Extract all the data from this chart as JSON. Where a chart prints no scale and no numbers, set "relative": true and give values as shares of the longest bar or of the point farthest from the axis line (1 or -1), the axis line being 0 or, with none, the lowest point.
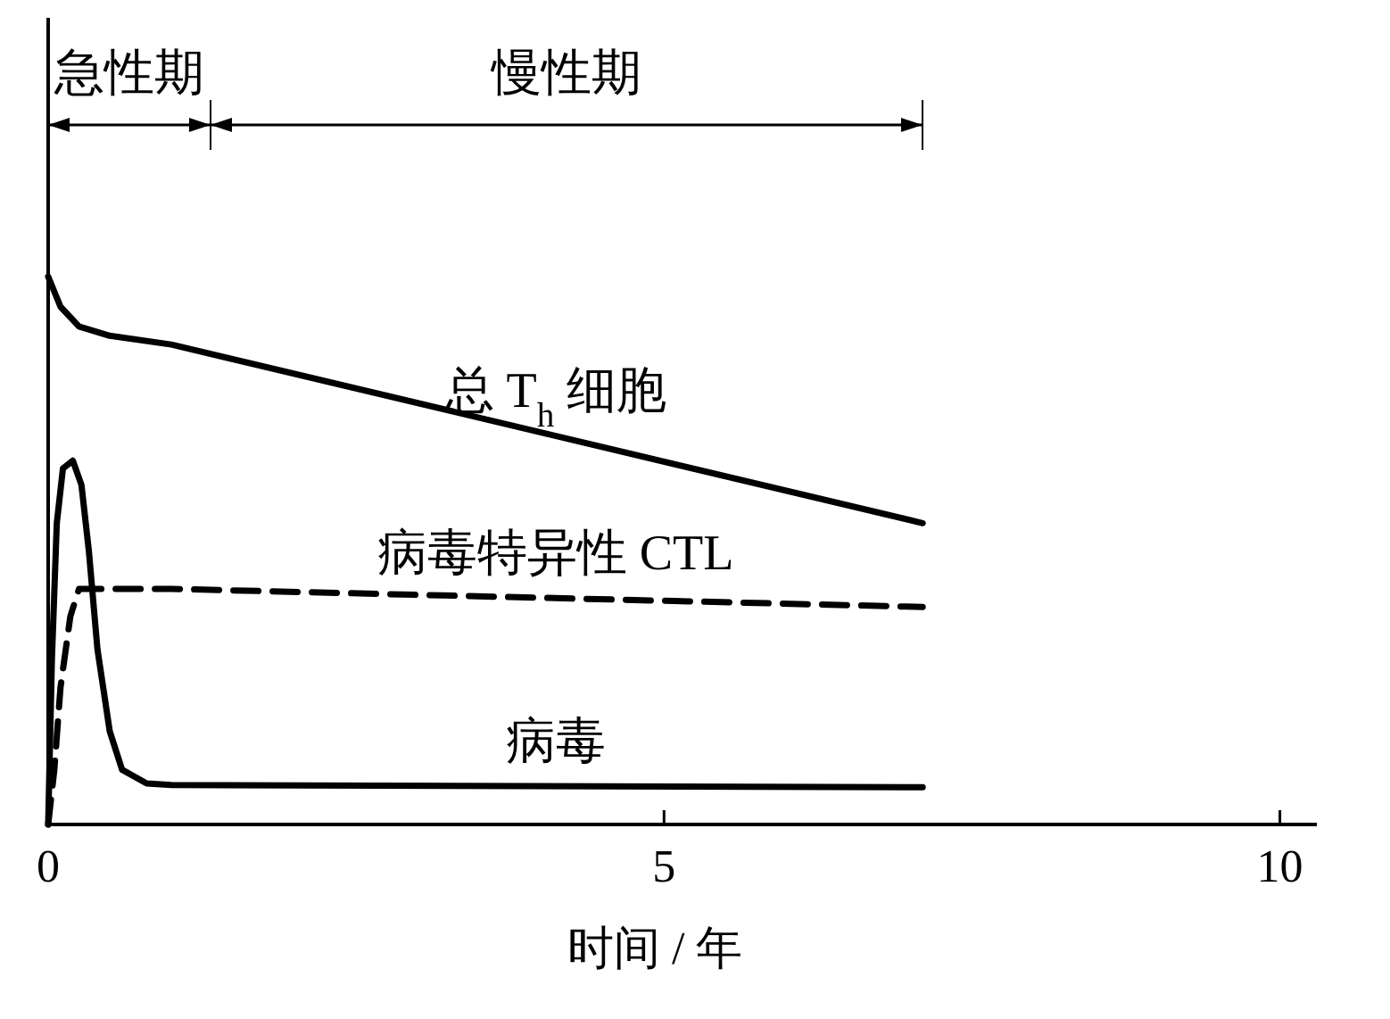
{
  "chart_data": {
    "type": "line",
    "relative": true,
    "xlabel": "时间 / 年",
    "xlim": [
      0,
      10.3
    ],
    "xticks": [
      0,
      5,
      10
    ],
    "grid": false,
    "annotations": [
      "急性期",
      "慢性期"
    ],
    "series": [
      {
        "name": "总 T$_{h}$ 细胞",
        "color": "#000000",
        "line_style": "solid",
        "x": [
          0,
          0.1,
          0.25,
          0.5,
          1.0,
          7.1
        ],
        "values": [
          1.0,
          0.945,
          0.909,
          0.892,
          0.876,
          0.55
        ]
      },
      {
        "name": "病毒特异性 CTL",
        "color": "#000000",
        "line_style": "dashed",
        "x": [
          0,
          0.05,
          0.1,
          0.18,
          0.25,
          1.0,
          7.1
        ],
        "values": [
          0,
          0.1,
          0.25,
          0.38,
          0.43,
          0.43,
          0.397
        ]
      },
      {
        "name": "病毒",
        "color": "#000000",
        "line_style": "solid",
        "x": [
          0,
          0.03,
          0.07,
          0.12,
          0.2,
          0.27,
          0.33,
          0.4,
          0.5,
          0.6,
          0.8,
          1.0,
          7.1
        ],
        "values": [
          0,
          0.3,
          0.55,
          0.65,
          0.664,
          0.62,
          0.5,
          0.32,
          0.17,
          0.1,
          0.075,
          0.072,
          0.068
        ]
      }
    ]
  }
}
